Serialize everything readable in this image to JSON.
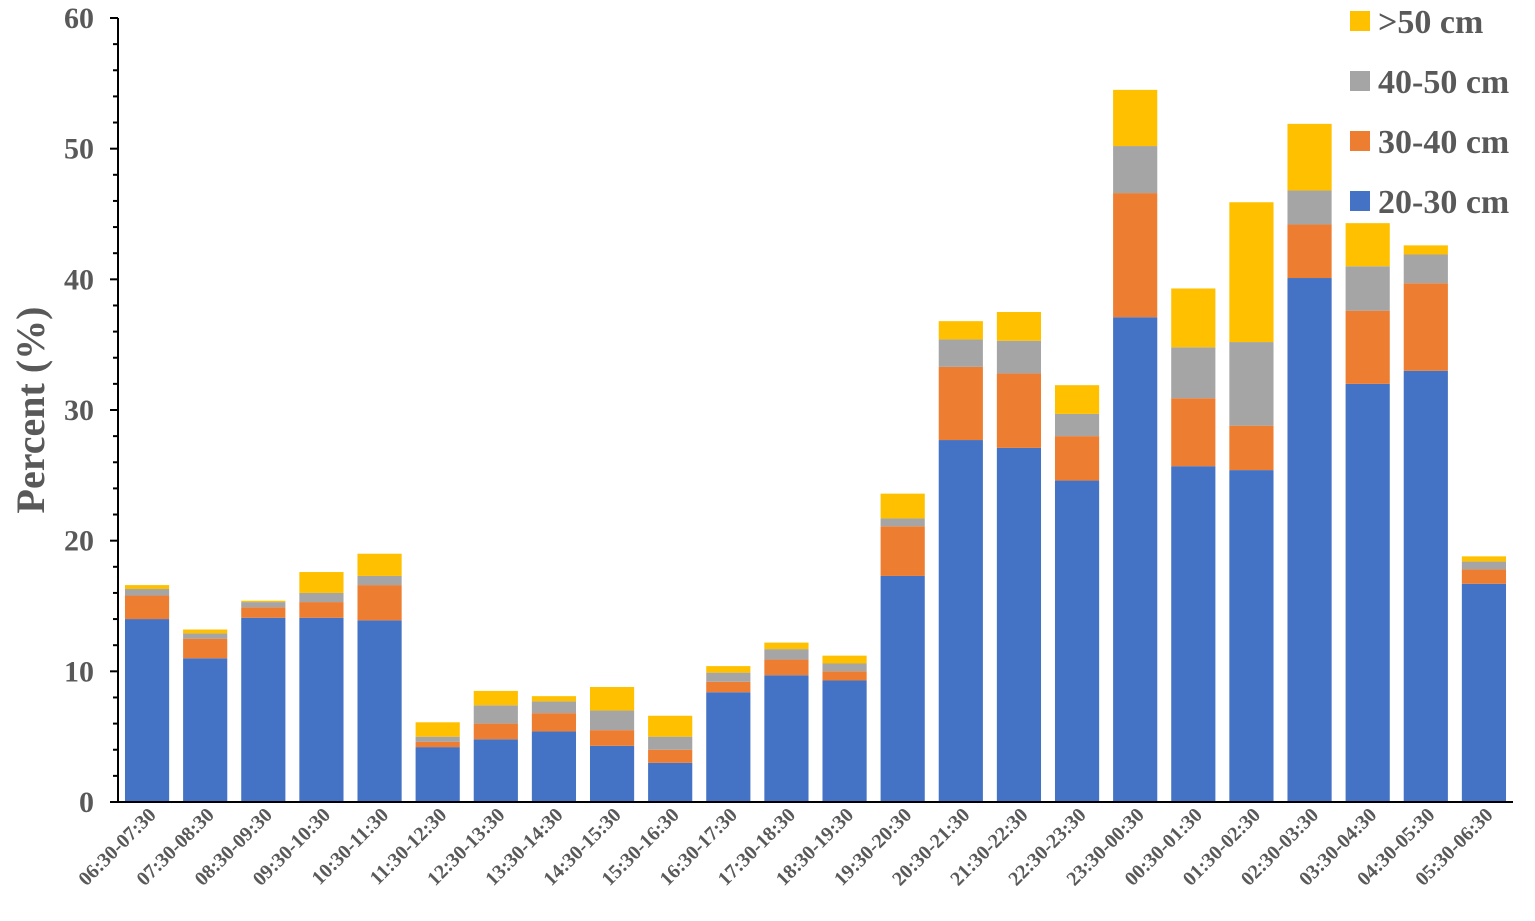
{
  "chart_data": {
    "type": "bar",
    "stacked": true,
    "ylabel": "Percent (%)",
    "ylim": [
      0,
      60
    ],
    "yticks": [
      0,
      10,
      20,
      30,
      40,
      50,
      60
    ],
    "grid": false,
    "legend_position": "top-right",
    "categories": [
      "06:30-07:30",
      "07:30-08:30",
      "08:30-09:30",
      "09:30-10:30",
      "10:30-11:30",
      "11:30-12:30",
      "12:30-13:30",
      "13:30-14:30",
      "14:30-15:30",
      "15:30-16:30",
      "16:30-17:30",
      "17:30-18:30",
      "18:30-19:30",
      "19:30-20:30",
      "20:30-21:30",
      "21:30-22:30",
      "22:30-23:30",
      "23:30-00:30",
      "00:30-01:30",
      "01:30-02:30",
      "02:30-03:30",
      "03:30-04:30",
      "04:30-05:30",
      "05:30-06:30"
    ],
    "series": [
      {
        "name": "20-30 cm",
        "color": "#4472C4",
        "values": [
          14.0,
          11.0,
          14.1,
          14.1,
          13.9,
          4.2,
          4.8,
          5.4,
          4.3,
          3.0,
          8.4,
          9.7,
          9.3,
          17.3,
          27.7,
          27.1,
          24.6,
          37.1,
          25.7,
          25.4,
          40.1,
          32.0,
          33.0,
          16.7
        ]
      },
      {
        "name": "30-40 cm",
        "color": "#ED7D31",
        "values": [
          1.8,
          1.5,
          0.8,
          1.2,
          2.7,
          0.4,
          1.2,
          1.4,
          1.2,
          1.0,
          0.8,
          1.2,
          0.7,
          3.8,
          5.6,
          5.7,
          3.4,
          9.5,
          5.2,
          3.4,
          4.1,
          5.6,
          6.7,
          1.1
        ]
      },
      {
        "name": "40-50 cm",
        "color": "#A5A5A5",
        "values": [
          0.5,
          0.4,
          0.4,
          0.7,
          0.7,
          0.4,
          1.4,
          0.9,
          1.5,
          1.0,
          0.7,
          0.8,
          0.6,
          0.6,
          2.1,
          2.5,
          1.7,
          3.6,
          3.9,
          6.4,
          2.6,
          3.4,
          2.2,
          0.6
        ]
      },
      {
        "name": ">50 cm",
        "color": "#FFC000",
        "values": [
          0.3,
          0.3,
          0.1,
          1.6,
          1.7,
          1.1,
          1.1,
          0.4,
          1.8,
          1.6,
          0.5,
          0.5,
          0.6,
          1.9,
          1.4,
          2.2,
          2.2,
          4.3,
          4.5,
          10.7,
          5.1,
          3.3,
          0.7,
          0.4
        ]
      }
    ],
    "legend_order": [
      ">50 cm",
      "40-50 cm",
      "30-40 cm",
      "20-30 cm"
    ]
  }
}
